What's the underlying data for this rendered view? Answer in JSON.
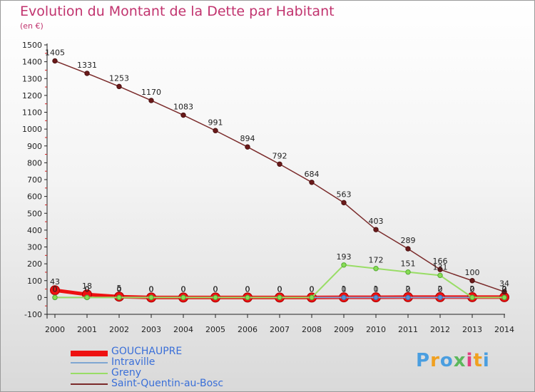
{
  "chart_data": {
    "type": "line",
    "title": "Evolution du Montant de la Dette par Habitant",
    "subtitle": "(en €)",
    "xlabel": "",
    "ylabel": "",
    "x": [
      "2000",
      "2001",
      "2002",
      "2003",
      "2004",
      "2005",
      "2006",
      "2007",
      "2008",
      "2009",
      "2010",
      "2011",
      "2012",
      "2013",
      "2014"
    ],
    "ylim": [
      -100,
      1500
    ],
    "yticks": [
      -100,
      0,
      100,
      200,
      300,
      400,
      500,
      600,
      700,
      800,
      900,
      1000,
      1100,
      1200,
      1300,
      1400,
      1500
    ],
    "grid": false,
    "legend_position": "bottom-left",
    "series": [
      {
        "name": "GOUCHAUPRE",
        "color": "#ee1111",
        "values": [
          43,
          18,
          5,
          0,
          0,
          0,
          0,
          0,
          0,
          1,
          1,
          2,
          2,
          2,
          2
        ],
        "labels": [
          "43",
          "18",
          "5",
          "0",
          "0",
          "0",
          "0",
          "0",
          "0",
          "1",
          "1",
          "2",
          "2",
          "2",
          "2"
        ]
      },
      {
        "name": "Intraville",
        "color": "#7fa6d2",
        "values": [
          0,
          0,
          0,
          0,
          0,
          0,
          0,
          0,
          0,
          0,
          0,
          0,
          0,
          0,
          0
        ],
        "labels": [
          "0",
          "0",
          "0",
          "0",
          "0",
          "0",
          "0",
          "0",
          "0",
          "0",
          "0",
          "0",
          "0",
          "0",
          "0"
        ]
      },
      {
        "name": "Greny",
        "color": "#99dd66",
        "values": [
          0,
          0,
          0,
          0,
          0,
          0,
          0,
          0,
          0,
          193,
          172,
          151,
          131,
          0,
          0
        ],
        "labels": [
          "0",
          "0",
          "0",
          "0",
          "0",
          "0",
          "0",
          "0",
          "0",
          "193",
          "172",
          "151",
          "131",
          "0",
          "0"
        ]
      },
      {
        "name": "Saint-Quentin-au-Bosc",
        "color": "#7a2a2a",
        "values": [
          1405,
          1331,
          1253,
          1170,
          1083,
          991,
          894,
          792,
          684,
          563,
          403,
          289,
          166,
          100,
          34
        ],
        "labels": [
          "1405",
          "1331",
          "1253",
          "1170",
          "1083",
          "991",
          "894",
          "792",
          "684",
          "563",
          "403",
          "289",
          "166",
          "100",
          "34"
        ]
      }
    ]
  },
  "logo": {
    "letters": [
      "P",
      "r",
      "o",
      "x",
      "i",
      "t",
      "i"
    ],
    "colors": [
      "#4a9ee0",
      "#f0a020",
      "#4a9ee0",
      "#5cb85c",
      "#e04080",
      "#f0a020",
      "#4a9ee0"
    ]
  }
}
